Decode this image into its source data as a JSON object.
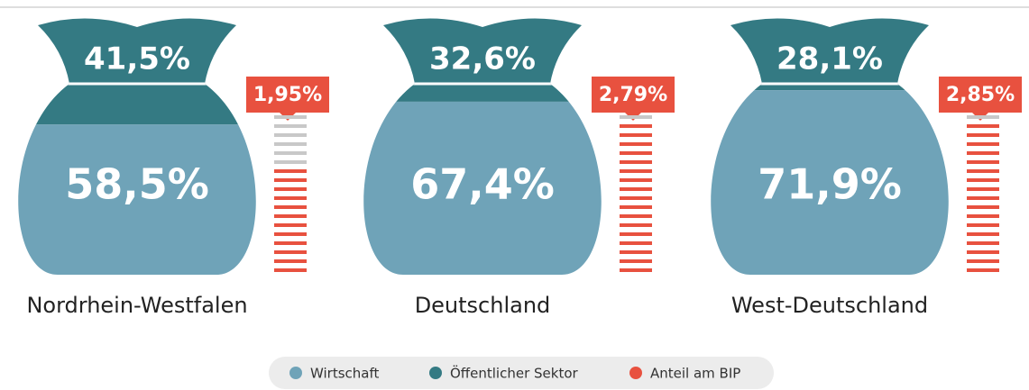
{
  "chart_data": {
    "type": "money-bag",
    "categories": [
      "Nordrhein-Westfalen",
      "Deutschland",
      "West-Deutschland"
    ],
    "series": [
      {
        "name": "Wirtschaft",
        "color": "#6fa3b8",
        "values": [
          58.5,
          67.4,
          71.9
        ],
        "value_labels": [
          "58,5%",
          "67,4%",
          "71,9%"
        ]
      },
      {
        "name": "Öffentlicher Sektor",
        "color": "#347a83",
        "values": [
          41.5,
          32.6,
          28.1
        ],
        "value_labels": [
          "41,5%",
          "32,6%",
          "28,1%"
        ]
      },
      {
        "name": "Anteil am BIP",
        "color": "#e8513f",
        "values": [
          1.95,
          2.79,
          2.85
        ],
        "value_labels": [
          "1,95%",
          "2,79%",
          "2,85%"
        ]
      }
    ],
    "ylim": [
      0,
      3
    ],
    "legend": "bottom"
  }
}
